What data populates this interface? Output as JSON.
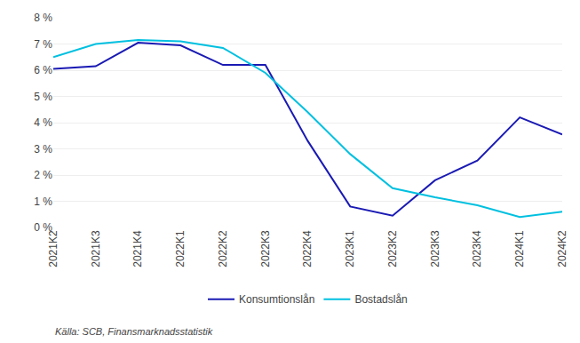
{
  "chart_data": {
    "type": "line",
    "categories": [
      "2021K2",
      "2021K3",
      "2021K4",
      "2022K1",
      "2022K2",
      "2022K3",
      "2022K4",
      "2023K1",
      "2023K2",
      "2023K3",
      "2023K4",
      "2024K1",
      "2024K2"
    ],
    "series": [
      {
        "name": "Konsumtionslån",
        "color": "#1a1ab4",
        "values": [
          6.05,
          6.15,
          7.05,
          6.95,
          6.2,
          6.2,
          3.3,
          0.8,
          0.45,
          1.8,
          2.55,
          4.2,
          3.55
        ]
      },
      {
        "name": "Bostadslån",
        "color": "#00c0e0",
        "values": [
          6.5,
          7.0,
          7.15,
          7.1,
          6.85,
          5.9,
          4.4,
          2.8,
          1.5,
          1.15,
          0.85,
          0.4,
          0.6
        ]
      }
    ],
    "ylim": [
      0,
      8
    ],
    "yticks": [
      {
        "value": 0,
        "label": "0 %"
      },
      {
        "value": 1,
        "label": "1 %"
      },
      {
        "value": 2,
        "label": "2 %"
      },
      {
        "value": 3,
        "label": "3 %"
      },
      {
        "value": 4,
        "label": "4 %"
      },
      {
        "value": 5,
        "label": "5 %"
      },
      {
        "value": 6,
        "label": "6 %"
      },
      {
        "value": 7,
        "label": "7 %"
      },
      {
        "value": 8,
        "label": "8 %"
      }
    ],
    "grid": "y",
    "legend": "bottom",
    "annotations": [
      "Källa: SCB, Finansmarknadsstatistik"
    ]
  }
}
